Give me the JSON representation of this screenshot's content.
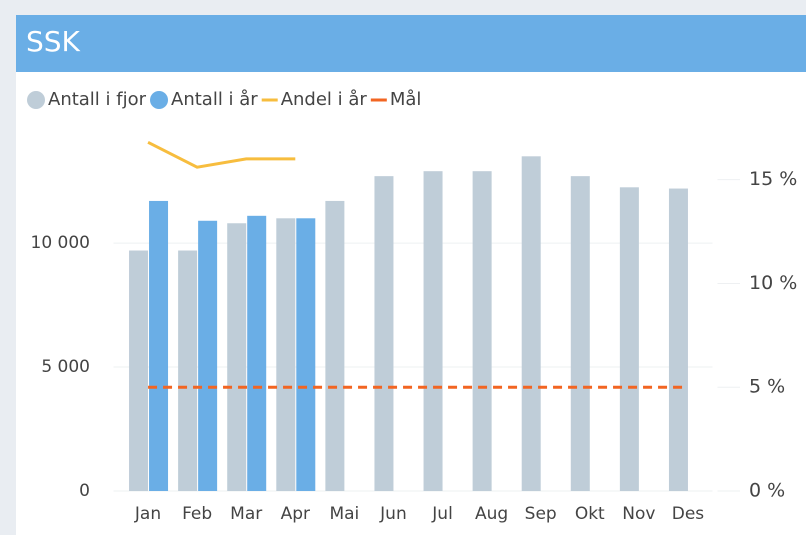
{
  "header": {
    "title": "SSK"
  },
  "chart_data": {
    "type": "bar",
    "categories": [
      "Jan",
      "Feb",
      "Mar",
      "Apr",
      "Mai",
      "Jun",
      "Jul",
      "Aug",
      "Sep",
      "Okt",
      "Nov",
      "Des"
    ],
    "series": [
      {
        "name": "Antall i fjor",
        "type": "bar",
        "color": "#bfcdd8",
        "values": [
          9700,
          9700,
          10800,
          11000,
          11700,
          12700,
          12900,
          12900,
          13500,
          12700,
          12250,
          12200
        ]
      },
      {
        "name": "Antall i år",
        "type": "bar",
        "color": "#6aaee6",
        "values": [
          11700,
          10900,
          11100,
          11000,
          null,
          null,
          null,
          null,
          null,
          null,
          null,
          null
        ]
      },
      {
        "name": "Andel i år",
        "type": "line",
        "axis": "y2",
        "color": "#f7bd3e",
        "values": [
          16.8,
          15.6,
          16.0,
          16.0,
          null,
          null,
          null,
          null,
          null,
          null,
          null,
          null
        ]
      },
      {
        "name": "Mål",
        "type": "line",
        "axis": "y2",
        "color": "#f26522",
        "dashed": true,
        "values": [
          5,
          5,
          5,
          5,
          5,
          5,
          5,
          5,
          5,
          5,
          5,
          5
        ]
      }
    ],
    "ylim": [
      0,
      14400
    ],
    "yticks": [
      0,
      {
        "value": 5000,
        "label": "5 000"
      },
      {
        "value": 10000,
        "label": "10 000"
      }
    ],
    "y2lim": [
      0,
      17.2
    ],
    "y2ticks": [
      {
        "value": 0,
        "label": "0 %"
      },
      {
        "value": 5,
        "label": "5 %"
      },
      {
        "value": 10,
        "label": "10 %"
      },
      {
        "value": 15,
        "label": "15 %"
      }
    ],
    "grid": true
  }
}
